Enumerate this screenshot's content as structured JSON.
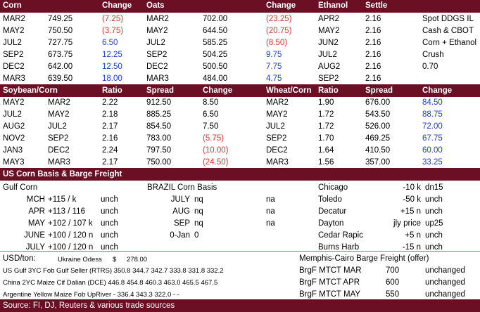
{
  "grain": {
    "headers": [
      "Corn",
      "Change",
      "Oats",
      "Change",
      "Ethanol",
      "Settle"
    ],
    "rows": [
      {
        "cm": "MAR2",
        "cp": "749.25",
        "cc": "(7.25)",
        "cs": "neg",
        "om": "MAR2",
        "op": "702.00",
        "oc": "(23.25)",
        "os": "neg",
        "em": "APR2",
        "ep": "2.16",
        "note": "Spot DDGS IL"
      },
      {
        "cm": "MAY2",
        "cp": "750.50",
        "cc": "(3.75)",
        "cs": "neg",
        "om": "MAY2",
        "op": "644.50",
        "oc": "(20.75)",
        "os": "neg",
        "em": "MAY2",
        "ep": "2.16",
        "note": "Cash & CBOT"
      },
      {
        "cm": "JUL2",
        "cp": "727.75",
        "cc": "6.50",
        "cs": "pos",
        "om": "JUL2",
        "op": "585.25",
        "oc": "(8.50)",
        "os": "neg",
        "em": "JUN2",
        "ep": "2.16",
        "note": "Corn + Ethanol"
      },
      {
        "cm": "SEP2",
        "cp": "673.75",
        "cc": "12.25",
        "cs": "pos",
        "om": "SEP2",
        "op": "504.25",
        "oc": "9.75",
        "os": "pos",
        "em": "JUL2",
        "ep": "2.16",
        "note": "Crush"
      },
      {
        "cm": "DEC2",
        "cp": "642.00",
        "cc": "12.50",
        "cs": "pos",
        "om": "DEC2",
        "op": "500.50",
        "oc": "7.75",
        "os": "pos",
        "em": "AUG2",
        "ep": "2.16",
        "note": "0.70"
      },
      {
        "cm": "MAR3",
        "cp": "639.50",
        "cc": "18.00",
        "cs": "pos",
        "om": "MAR3",
        "op": "484.00",
        "oc": "4.75",
        "os": "pos",
        "em": "SEP2",
        "ep": "2.16",
        "note": ""
      }
    ]
  },
  "spreads": {
    "headers": [
      "Soybean/Corn",
      "Ratio",
      "Spread",
      "Change",
      "Wheat/Corn",
      "Ratio",
      "Spread",
      "Change"
    ],
    "rows": [
      {
        "a": "MAY2",
        "b": "MAR2",
        "r": "2.22",
        "sp": "912.50",
        "ch": "8.50",
        "cs": "plain",
        "wa": "MAR2",
        "wr": "1.90",
        "wsp": "676.00",
        "wch": "84.50",
        "ws": "pos"
      },
      {
        "a": "JUL2",
        "b": "MAY2",
        "r": "2.18",
        "sp": "885.25",
        "ch": "6.50",
        "cs": "plain",
        "wa": "MAY2",
        "wr": "1.72",
        "wsp": "543.50",
        "wch": "88.75",
        "ws": "pos"
      },
      {
        "a": "AUG2",
        "b": "JUL2",
        "r": "2.17",
        "sp": "854.50",
        "ch": "7.50",
        "cs": "plain",
        "wa": "JUL2",
        "wr": "1.72",
        "wsp": "526.00",
        "wch": "72.00",
        "ws": "pos"
      },
      {
        "a": "NOV2",
        "b": "SEP2",
        "r": "2.16",
        "sp": "783.00",
        "ch": "(5.75)",
        "cs": "neg",
        "wa": "SEP2",
        "wr": "1.70",
        "wsp": "469.25",
        "wch": "67.75",
        "ws": "pos"
      },
      {
        "a": "JAN3",
        "b": "DEC2",
        "r": "2.24",
        "sp": "797.50",
        "ch": "(10.00)",
        "cs": "neg",
        "wa": "DEC2",
        "wr": "1.64",
        "wsp": "410.50",
        "wch": "60.00",
        "ws": "pos"
      },
      {
        "a": "MAY3",
        "b": "MAR3",
        "r": "2.17",
        "sp": "750.00",
        "ch": "(24.50)",
        "cs": "neg",
        "wa": "MAR3",
        "wr": "1.56",
        "wsp": "357.00",
        "wch": "33.25",
        "ws": "pos"
      }
    ]
  },
  "basis": {
    "title": "US Corn Basis & Barge Freight",
    "gulf_title": "Gulf Corn",
    "gulf": [
      {
        "m": "MCH",
        "v": "+115 / k",
        "u": "unch"
      },
      {
        "m": "APR",
        "v": "+113 / 116",
        "u": "unch"
      },
      {
        "m": "MAY",
        "v": "+102 / 107 k",
        "u": "unch"
      },
      {
        "m": "JUNE",
        "v": "+100 / 120 n",
        "u": "unch"
      },
      {
        "m": "JULY",
        "v": "+100 / 120 n",
        "u": "unch"
      }
    ],
    "brazil_title": "BRAZIL Corn Basis",
    "brazil": [
      {
        "m": "JULY",
        "v": "nq",
        "x": "na"
      },
      {
        "m": "AUG",
        "v": "nq",
        "x": "na"
      },
      {
        "m": "SEP",
        "v": "nq",
        "x": "na"
      },
      {
        "m": "0-Jan",
        "v": "0",
        "x": ""
      }
    ],
    "cities": [
      {
        "c": "Chicago",
        "v": "-10 k",
        "x": "dn15"
      },
      {
        "c": "Toledo",
        "v": "-50 k",
        "x": "unch"
      },
      {
        "c": "Decatur",
        "v": "+15 n",
        "x": "unch"
      },
      {
        "c": "Dayton",
        "v": "jly price",
        "x": "up25"
      },
      {
        "c": "Cedar Rapic",
        "v": "+5 n",
        "x": "unch"
      },
      {
        "c": "Burns Harb",
        "v": "-15 n",
        "x": "unch"
      }
    ]
  },
  "usd": {
    "label": "USD/ton:",
    "odessa_label": "Ukraine Odess",
    "odessa_cur": "$",
    "odessa_val": "278.00",
    "barge_title": "Memphis-Cairo Barge Freight (offer)",
    "rows": [
      {
        "lbl": "US Gulf  3YC Fob Gulf Seller (RTRS) 350.8  344.7  342.7  333.8  331.8  332.2",
        "bm": "BrgF MTCT MAR",
        "bv": "700",
        "bu": "unchanged"
      },
      {
        "lbl": "China    2YC Maize Cif Dalian (DCE) 446.8  454.8  460.3  463.0  465.5  467.5",
        "bm": "BrgF MTCT APR",
        "bv": "600",
        "bu": "unchanged"
      },
      {
        "lbl": "Argentine Yellow Maize Fob UpRiver   -   336.4  343.3  322.0     -      -",
        "bm": "BrgF MTCT MAY",
        "bv": "550",
        "bu": "unchanged"
      }
    ]
  },
  "source": "Source: FI, DJ, Reuters & various trade sources",
  "colors": {
    "band": "#6b0f24",
    "negative": "#e3342f",
    "positive": "#1d3fd6"
  }
}
